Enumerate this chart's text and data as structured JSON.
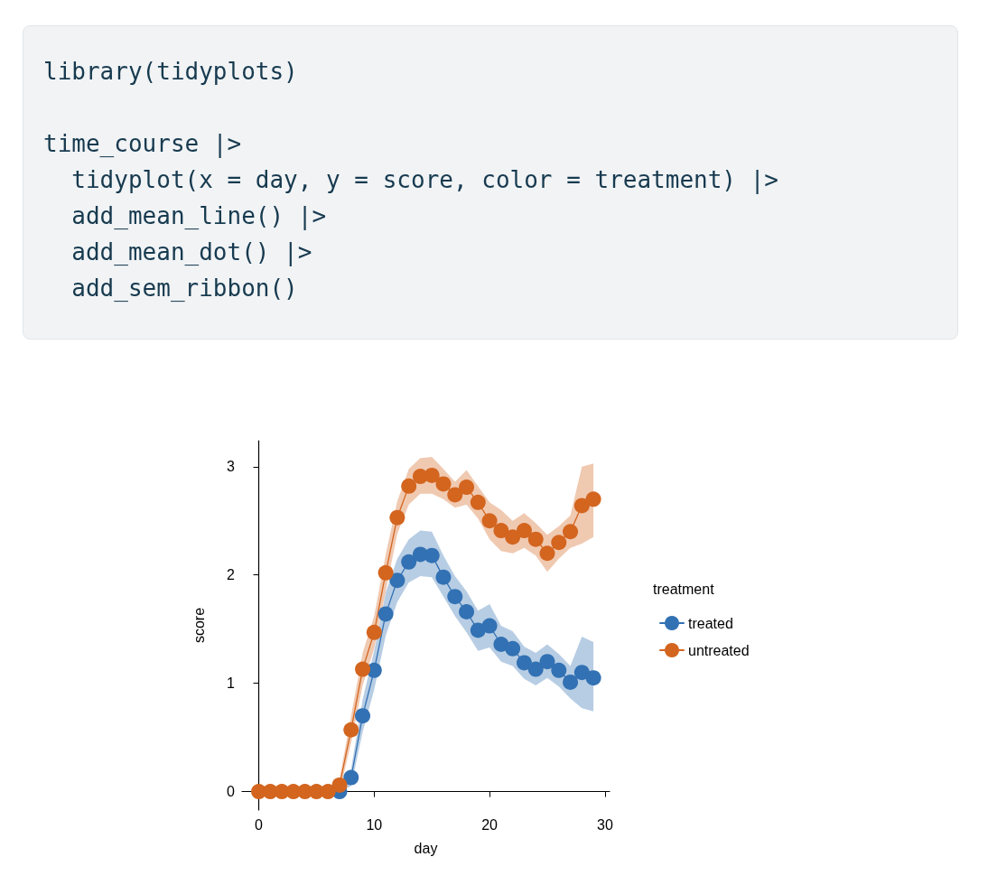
{
  "chart_data": {
    "type": "line",
    "annotations": [
      "library(tidyplots)",
      "time_course |>",
      "  tidyplot(x = day, y = score, color = treatment) |>",
      "  add_mean_line() |>",
      "  add_mean_dot() |>",
      "  add_sem_ribbon()"
    ],
    "xlabel": "day",
    "ylabel": "score",
    "legend_title": "treatment",
    "x": [
      0,
      1,
      2,
      3,
      4,
      5,
      6,
      7,
      8,
      9,
      10,
      11,
      12,
      13,
      14,
      15,
      16,
      17,
      18,
      19,
      20,
      21,
      22,
      23,
      24,
      25,
      26,
      27,
      28,
      29
    ],
    "series": [
      {
        "name": "treated",
        "color": "#3271b3",
        "values": [
          null,
          null,
          null,
          null,
          null,
          null,
          null,
          0,
          0.13,
          0.7,
          1.12,
          1.64,
          1.95,
          2.12,
          2.19,
          2.18,
          1.98,
          1.8,
          1.66,
          1.49,
          1.53,
          1.36,
          1.32,
          1.19,
          1.13,
          1.2,
          1.12,
          1.01,
          1.1,
          1.05
        ],
        "lower": [
          null,
          null,
          null,
          null,
          null,
          null,
          null,
          0,
          0.05,
          0.55,
          0.94,
          1.44,
          1.75,
          1.93,
          1.99,
          1.98,
          1.8,
          1.62,
          1.47,
          1.3,
          1.33,
          1.2,
          1.16,
          1.04,
          0.98,
          1.05,
          0.97,
          0.86,
          0.77,
          0.74
        ],
        "upper": [
          null,
          null,
          null,
          null,
          null,
          null,
          null,
          0,
          0.21,
          0.85,
          1.3,
          1.84,
          2.15,
          2.33,
          2.41,
          2.4,
          2.18,
          1.99,
          1.85,
          1.67,
          1.73,
          1.53,
          1.48,
          1.34,
          1.28,
          1.36,
          1.27,
          1.16,
          1.43,
          1.38
        ]
      },
      {
        "name": "untreated",
        "color": "#d3651f",
        "values": [
          0,
          0,
          0,
          0,
          0,
          0,
          0,
          0.06,
          0.57,
          1.13,
          1.47,
          2.02,
          2.53,
          2.82,
          2.91,
          2.92,
          2.84,
          2.74,
          2.81,
          2.67,
          2.5,
          2.41,
          2.35,
          2.41,
          2.33,
          2.2,
          2.3,
          2.4,
          2.64,
          2.7
        ],
        "lower": [
          0,
          0,
          0,
          0,
          0,
          0,
          0,
          0,
          0.45,
          0.98,
          1.32,
          1.85,
          2.38,
          2.65,
          2.75,
          2.75,
          2.7,
          2.62,
          2.65,
          2.52,
          2.33,
          2.22,
          2.2,
          2.25,
          2.18,
          2.03,
          2.15,
          2.25,
          2.29,
          2.35
        ],
        "upper": [
          0,
          0,
          0,
          0,
          0,
          0,
          0,
          0.12,
          0.7,
          1.28,
          1.62,
          2.19,
          2.68,
          2.98,
          3.08,
          3.09,
          2.98,
          2.86,
          2.97,
          2.82,
          2.67,
          2.6,
          2.5,
          2.57,
          2.48,
          2.37,
          2.45,
          2.55,
          3.0,
          3.03
        ]
      }
    ],
    "xlim": [
      -1.45,
      30.4
    ],
    "xticks": [
      0,
      10,
      20,
      30
    ],
    "ylim": [
      -0.17,
      3.24
    ],
    "yticks": [
      0,
      1,
      2,
      3
    ],
    "grid": false,
    "legend": "right",
    "marker": "circle",
    "line_style": "solid"
  }
}
